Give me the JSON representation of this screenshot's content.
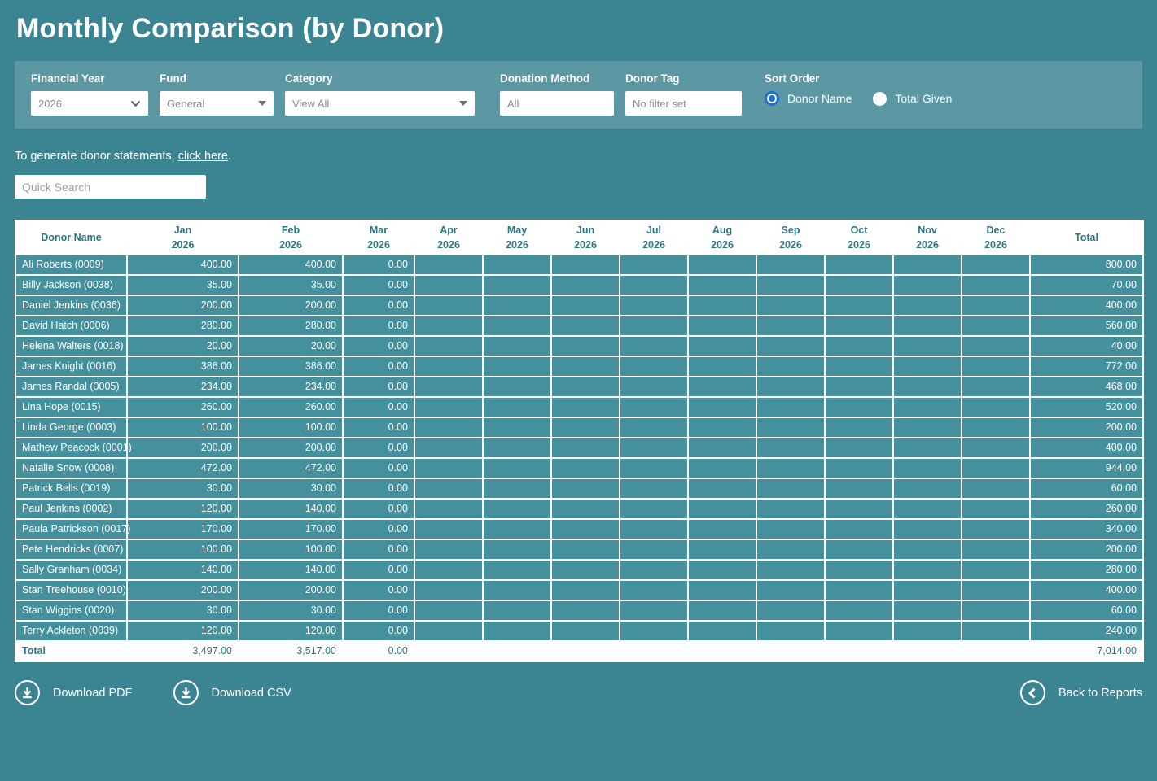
{
  "title": "Monthly Comparison (by Donor)",
  "filters": {
    "financial_year": {
      "label": "Financial Year",
      "value": "2026"
    },
    "fund": {
      "label": "Fund",
      "value": "General"
    },
    "category": {
      "label": "Category",
      "value": "View All"
    },
    "donation_method": {
      "label": "Donation Method",
      "value": "All"
    },
    "donor_tag": {
      "label": "Donor Tag",
      "value": "No filter set"
    },
    "sort_order": {
      "label": "Sort Order",
      "options": [
        {
          "label": "Donor Name",
          "selected": true
        },
        {
          "label": "Total Given",
          "selected": false
        }
      ]
    }
  },
  "statement_note": {
    "prefix": "To generate donor statements, ",
    "link": "click here",
    "suffix": "."
  },
  "quick_search_placeholder": "Quick Search",
  "table": {
    "donor_header": "Donor Name",
    "total_header": "Total",
    "months": [
      {
        "month": "Jan",
        "year": "2026"
      },
      {
        "month": "Feb",
        "year": "2026"
      },
      {
        "month": "Mar",
        "year": "2026"
      },
      {
        "month": "Apr",
        "year": "2026"
      },
      {
        "month": "May",
        "year": "2026"
      },
      {
        "month": "Jun",
        "year": "2026"
      },
      {
        "month": "Jul",
        "year": "2026"
      },
      {
        "month": "Aug",
        "year": "2026"
      },
      {
        "month": "Sep",
        "year": "2026"
      },
      {
        "month": "Oct",
        "year": "2026"
      },
      {
        "month": "Nov",
        "year": "2026"
      },
      {
        "month": "Dec",
        "year": "2026"
      }
    ],
    "rows": [
      {
        "name": "Ali Roberts (0009)",
        "values": [
          "400.00",
          "400.00",
          "0.00",
          "",
          "",
          "",
          "",
          "",
          "",
          "",
          "",
          ""
        ],
        "total": "800.00"
      },
      {
        "name": "Billy Jackson (0038)",
        "values": [
          "35.00",
          "35.00",
          "0.00",
          "",
          "",
          "",
          "",
          "",
          "",
          "",
          "",
          ""
        ],
        "total": "70.00"
      },
      {
        "name": "Daniel Jenkins (0036)",
        "values": [
          "200.00",
          "200.00",
          "0.00",
          "",
          "",
          "",
          "",
          "",
          "",
          "",
          "",
          ""
        ],
        "total": "400.00"
      },
      {
        "name": "David Hatch (0006)",
        "values": [
          "280.00",
          "280.00",
          "0.00",
          "",
          "",
          "",
          "",
          "",
          "",
          "",
          "",
          ""
        ],
        "total": "560.00"
      },
      {
        "name": "Helena Walters (0018)",
        "values": [
          "20.00",
          "20.00",
          "0.00",
          "",
          "",
          "",
          "",
          "",
          "",
          "",
          "",
          ""
        ],
        "total": "40.00"
      },
      {
        "name": "James Knight (0016)",
        "values": [
          "386.00",
          "386.00",
          "0.00",
          "",
          "",
          "",
          "",
          "",
          "",
          "",
          "",
          ""
        ],
        "total": "772.00"
      },
      {
        "name": "James Randal (0005)",
        "values": [
          "234.00",
          "234.00",
          "0.00",
          "",
          "",
          "",
          "",
          "",
          "",
          "",
          "",
          ""
        ],
        "total": "468.00"
      },
      {
        "name": "Lina Hope (0015)",
        "values": [
          "260.00",
          "260.00",
          "0.00",
          "",
          "",
          "",
          "",
          "",
          "",
          "",
          "",
          ""
        ],
        "total": "520.00"
      },
      {
        "name": "Linda George (0003)",
        "values": [
          "100.00",
          "100.00",
          "0.00",
          "",
          "",
          "",
          "",
          "",
          "",
          "",
          "",
          ""
        ],
        "total": "200.00"
      },
      {
        "name": "Mathew Peacock (0001)",
        "values": [
          "200.00",
          "200.00",
          "0.00",
          "",
          "",
          "",
          "",
          "",
          "",
          "",
          "",
          ""
        ],
        "total": "400.00"
      },
      {
        "name": "Natalie Snow (0008)",
        "values": [
          "472.00",
          "472.00",
          "0.00",
          "",
          "",
          "",
          "",
          "",
          "",
          "",
          "",
          ""
        ],
        "total": "944.00"
      },
      {
        "name": "Patrick Bells (0019)",
        "values": [
          "30.00",
          "30.00",
          "0.00",
          "",
          "",
          "",
          "",
          "",
          "",
          "",
          "",
          ""
        ],
        "total": "60.00"
      },
      {
        "name": "Paul Jenkins (0002)",
        "values": [
          "120.00",
          "140.00",
          "0.00",
          "",
          "",
          "",
          "",
          "",
          "",
          "",
          "",
          ""
        ],
        "total": "260.00"
      },
      {
        "name": "Paula Patrickson (0017)",
        "values": [
          "170.00",
          "170.00",
          "0.00",
          "",
          "",
          "",
          "",
          "",
          "",
          "",
          "",
          ""
        ],
        "total": "340.00"
      },
      {
        "name": "Pete Hendricks (0007)",
        "values": [
          "100.00",
          "100.00",
          "0.00",
          "",
          "",
          "",
          "",
          "",
          "",
          "",
          "",
          ""
        ],
        "total": "200.00"
      },
      {
        "name": "Sally Granham (0034)",
        "values": [
          "140.00",
          "140.00",
          "0.00",
          "",
          "",
          "",
          "",
          "",
          "",
          "",
          "",
          ""
        ],
        "total": "280.00"
      },
      {
        "name": "Stan Treehouse (0010)",
        "values": [
          "200.00",
          "200.00",
          "0.00",
          "",
          "",
          "",
          "",
          "",
          "",
          "",
          "",
          ""
        ],
        "total": "400.00"
      },
      {
        "name": "Stan Wiggins (0020)",
        "values": [
          "30.00",
          "30.00",
          "0.00",
          "",
          "",
          "",
          "",
          "",
          "",
          "",
          "",
          ""
        ],
        "total": "60.00"
      },
      {
        "name": "Terry Ackleton (0039)",
        "values": [
          "120.00",
          "120.00",
          "0.00",
          "",
          "",
          "",
          "",
          "",
          "",
          "",
          "",
          ""
        ],
        "total": "240.00"
      }
    ],
    "total_row": {
      "label": "Total",
      "values": [
        "3,497.00",
        "3,517.00",
        "0.00",
        "",
        "",
        "",
        "",
        "",
        "",
        "",
        "",
        ""
      ],
      "total": "7,014.00"
    }
  },
  "footer": {
    "download_pdf": "Download PDF",
    "download_csv": "Download CSV",
    "back": "Back to Reports"
  },
  "icons": {
    "financial_year": "chevron-down-icon",
    "fund": "caret-down-icon",
    "category": "caret-down-icon",
    "download": "download-icon",
    "back": "chevron-left-icon"
  },
  "colors": {
    "page_background": "#3b8492",
    "filter_panel": "#5a9aa6",
    "table_row": "#44909c",
    "table_header_text": "#2d7582",
    "radio_selected": "#1d6fd2",
    "text_on_teal": "#ffffff",
    "input_text": "#8a8f94"
  }
}
